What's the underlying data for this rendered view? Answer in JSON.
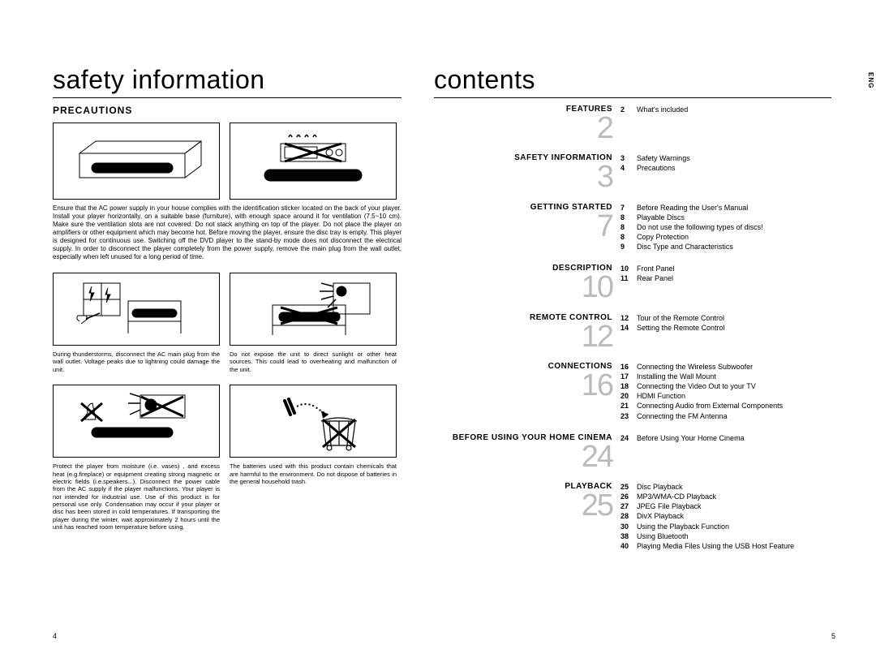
{
  "eng_label": "ENG",
  "left": {
    "title": "safety information",
    "section": "PRECAUTIONS",
    "para1": "Ensure that the AC power supply in your house complies with the identification sticker located on the back of your player. Install your player horizontally, on a suitable base (furniture), with enough space around it for ventilation (7.5~10 cm). Make sure the ventilation slots are not covered. Do not stack anything on top of the player. Do not place the player on amplifiers or other equipment which may become hot. Before moving the player, ensure the disc tray is empty. This player is designed for continuous use. Switching off the DVD player to the stand-by mode does not disconnect the electrical supply. In order to disconnect the player completely from the power supply, remove the main plug from the wall outlet, especially when left unused for a long period of time.",
    "cap_r2_a": "During thunderstorms, disconnect the AC main plug from the wall outlet. Voltage peaks due to lightning could damage the unit.",
    "cap_r2_b": "Do not expose the unit to direct sunlight or other heat sources. This could lead to overheating and malfunction of the unit.",
    "cap_r3_a": "Protect the player from moisture (i.e. vases) , and excess heat (e.g.fireplace) or equipment creating strong magnetic or electric fields (i.e.speakers...). Disconnect the power cable from the AC supply if the player malfunctions. Your player is not intended for industrial use. Use of this product is for personal use only. Condensation may occur if your player or disc has been stored in cold temperatures. If transporting the player during the winter, wait approximately 2 hours until the unit has reached room temperature before using.",
    "cap_r3_b": "The batteries used with this product contain chemicals that are harmful to the environment. Do not dispose of batteries in the general household trash.",
    "page_num": "4"
  },
  "right": {
    "title": "contents",
    "page_num": "5",
    "sections": [
      {
        "name": "FEATURES",
        "num": "2",
        "items": [
          {
            "pg": "2",
            "txt": "What's included"
          }
        ]
      },
      {
        "name": "SAFETY INFORMATION",
        "num": "3",
        "items": [
          {
            "pg": "3",
            "txt": "Safety Warnings"
          },
          {
            "pg": "4",
            "txt": "Precautions"
          }
        ]
      },
      {
        "name": "GETTING STARTED",
        "num": "7",
        "items": [
          {
            "pg": "7",
            "txt": "Before Reading the User's Manual"
          },
          {
            "pg": "8",
            "txt": "Playable Discs"
          },
          {
            "pg": "8",
            "txt": "Do not use the following types of discs!"
          },
          {
            "pg": "8",
            "txt": "Copy Protection"
          },
          {
            "pg": "9",
            "txt": "Disc Type and Characteristics"
          }
        ]
      },
      {
        "name": "DESCRIPTION",
        "num": "10",
        "items": [
          {
            "pg": "10",
            "txt": "Front Panel"
          },
          {
            "pg": "11",
            "txt": "Rear Panel"
          }
        ]
      },
      {
        "name": "REMOTE CONTROL",
        "num": "12",
        "items": [
          {
            "pg": "12",
            "txt": "Tour of the Remote Control"
          },
          {
            "pg": "14",
            "txt": "Setting the Remote Control"
          }
        ]
      },
      {
        "name": "CONNECTIONS",
        "num": "16",
        "items": [
          {
            "pg": "16",
            "txt": "Connecting the Wireless Subwoofer"
          },
          {
            "pg": "17",
            "txt": "Installing the Wall Mount"
          },
          {
            "pg": "18",
            "txt": "Connecting the Video Out to your TV"
          },
          {
            "pg": "20",
            "txt": "HDMI Function"
          },
          {
            "pg": "21",
            "txt": "Connecting Audio from External Components"
          },
          {
            "pg": "23",
            "txt": "Connecting the FM Antenna"
          }
        ]
      },
      {
        "name": "BEFORE USING YOUR HOME CINEMA",
        "num": "24",
        "items": [
          {
            "pg": "24",
            "txt": "Before Using Your Home Cinema"
          }
        ]
      },
      {
        "name": "PLAYBACK",
        "num": "25",
        "items": [
          {
            "pg": "25",
            "txt": "Disc Playback"
          },
          {
            "pg": "26",
            "txt": "MP3/WMA-CD Playback"
          },
          {
            "pg": "27",
            "txt": "JPEG File Playback"
          },
          {
            "pg": "28",
            "txt": "DivX Playback"
          },
          {
            "pg": "30",
            "txt": "Using the Playback Function"
          },
          {
            "pg": "38",
            "txt": "Using Bluetooth"
          },
          {
            "pg": "40",
            "txt": "Playing Media Files Using the USB Host Feature"
          }
        ]
      }
    ]
  }
}
